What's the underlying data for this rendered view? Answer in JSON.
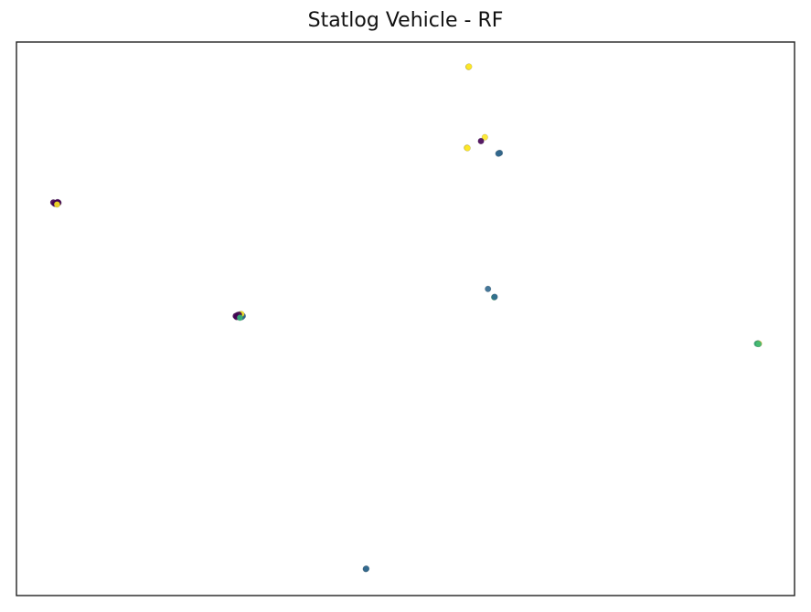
{
  "chart_data": {
    "type": "scatter",
    "title": "Statlog Vehicle - RF",
    "xlabel": "",
    "ylabel": "",
    "xlim": [
      0,
      100
    ],
    "ylim": [
      0,
      100
    ],
    "axes_visible": false,
    "grid": false,
    "legend": "none",
    "colormap": "viridis",
    "class_colors": [
      "#440154",
      "#31688e",
      "#35b779",
      "#fde725"
    ],
    "clusters": [
      {
        "x": 5.1,
        "y": 70.9,
        "points": [
          [
            -0.6,
            0.2,
            0
          ],
          [
            0,
            0,
            0
          ],
          [
            0.5,
            0.1,
            0
          ],
          [
            0.1,
            -0.3,
            0
          ],
          [
            -0.3,
            -0.2,
            0
          ],
          [
            0.3,
            0.3,
            0
          ],
          [
            0.2,
            -0.4,
            3
          ]
        ]
      },
      {
        "x": 28.6,
        "y": 50.5,
        "points": [
          [
            -0.7,
            0,
            0
          ],
          [
            -0.3,
            0.3,
            0
          ],
          [
            0,
            -0.2,
            0
          ],
          [
            0.4,
            0.1,
            0
          ],
          [
            0.8,
            0,
            1
          ],
          [
            0.6,
            -0.3,
            1
          ],
          [
            0.3,
            0.5,
            2
          ],
          [
            0.5,
            0.6,
            3
          ],
          [
            0,
            0.4,
            0
          ],
          [
            -0.5,
            -0.3,
            0
          ],
          [
            0.2,
            -0.5,
            2
          ]
        ]
      },
      {
        "x": 58.1,
        "y": 95.5,
        "points": [
          [
            0,
            0,
            3
          ],
          [
            0.1,
            0.1,
            3
          ]
        ]
      },
      {
        "x": 57.9,
        "y": 80.9,
        "points": [
          [
            0,
            0,
            3
          ],
          [
            0.1,
            -0.1,
            3
          ]
        ]
      },
      {
        "x": 60.2,
        "y": 82.8,
        "points": [
          [
            0,
            0,
            3
          ]
        ]
      },
      {
        "x": 59.7,
        "y": 82.1,
        "points": [
          [
            0,
            0,
            0
          ]
        ]
      },
      {
        "x": 62.0,
        "y": 79.9,
        "points": [
          [
            0,
            0,
            1
          ],
          [
            0.2,
            0.1,
            1
          ],
          [
            -0.1,
            -0.1,
            1
          ]
        ]
      },
      {
        "x": 60.6,
        "y": 55.4,
        "points": [
          [
            0,
            0,
            1
          ]
        ]
      },
      {
        "x": 61.4,
        "y": 53.9,
        "points": [
          [
            0,
            0,
            2
          ],
          [
            0.1,
            0.1,
            1
          ]
        ]
      },
      {
        "x": 95.3,
        "y": 45.5,
        "points": [
          [
            -0.2,
            0,
            2
          ],
          [
            0,
            0.1,
            2
          ],
          [
            0.2,
            0,
            3
          ],
          [
            0.1,
            -0.1,
            2
          ]
        ]
      },
      {
        "x": 44.9,
        "y": 4.8,
        "points": [
          [
            0,
            0,
            1
          ],
          [
            0.1,
            0.1,
            1
          ]
        ]
      }
    ]
  }
}
